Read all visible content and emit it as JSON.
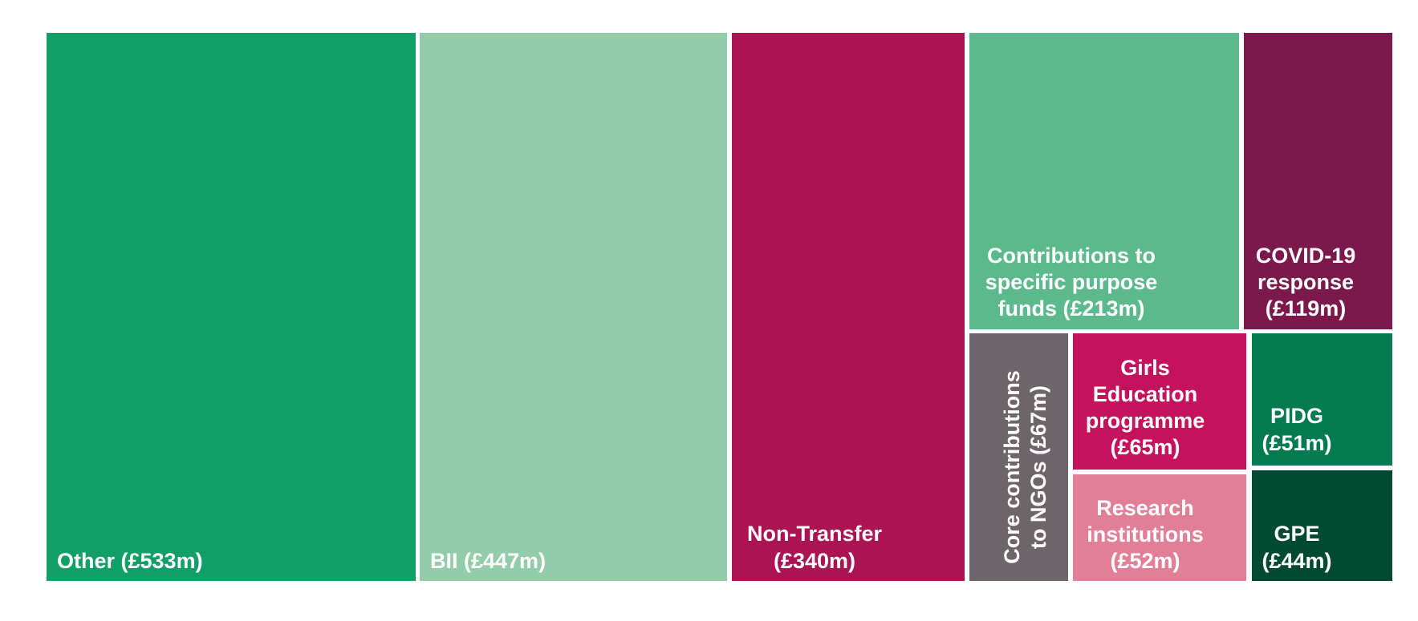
{
  "chart_data": {
    "type": "treemap",
    "unit": "£m",
    "items": [
      {
        "key": "other",
        "label": "Other (£533m)",
        "value": 533,
        "color": "#119f68"
      },
      {
        "key": "bii",
        "label": "BII (£447m)",
        "value": 447,
        "color": "#93cca9"
      },
      {
        "key": "non-transfer",
        "label": "Non-Transfer (£340m)",
        "value": 340,
        "color": "#ab1352"
      },
      {
        "key": "specific-purpose-funds",
        "label": "Contributions to specific purpose funds (£213m)",
        "value": 213,
        "color": "#5bb98b"
      },
      {
        "key": "covid-19",
        "label": "COVID-19 response (£119m)",
        "value": 119,
        "color": "#7b184c"
      },
      {
        "key": "core-ngos",
        "label": "Core contributions to NGOs (£67m)",
        "value": 67,
        "color": "#6c6569"
      },
      {
        "key": "girls-education",
        "label": "Girls Education programme (£65m)",
        "value": 65,
        "color": "#c4125c"
      },
      {
        "key": "research",
        "label": "Research institutions (£52m)",
        "value": 52,
        "color": "#e17f98"
      },
      {
        "key": "pidg",
        "label": "PIDG (£51m)",
        "value": 51,
        "color": "#037a4f"
      },
      {
        "key": "gpe",
        "label": "GPE (£44m)",
        "value": 44,
        "color": "#004a31"
      }
    ]
  }
}
